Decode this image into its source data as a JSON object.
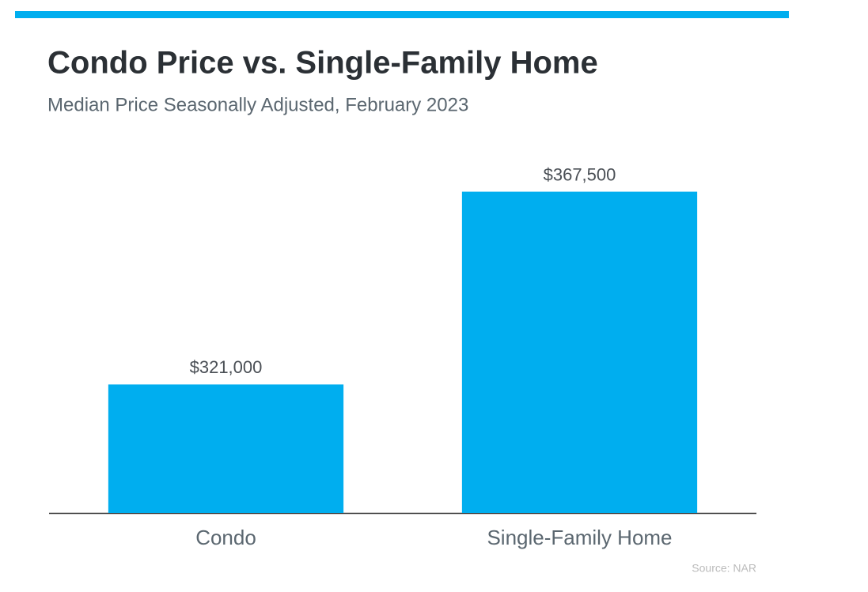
{
  "chart_data": {
    "type": "bar",
    "title": "Condo Price vs. Single-Family Home",
    "subtitle": "Median Price Seasonally Adjusted, February 2023",
    "categories": [
      "Condo",
      "Single-Family Home"
    ],
    "values": [
      321000,
      367500
    ],
    "value_labels": [
      "$321,000",
      "$367,500"
    ],
    "color": "#00aeef",
    "ylim": [
      290000,
      380000
    ],
    "source": "Source: NAR"
  }
}
